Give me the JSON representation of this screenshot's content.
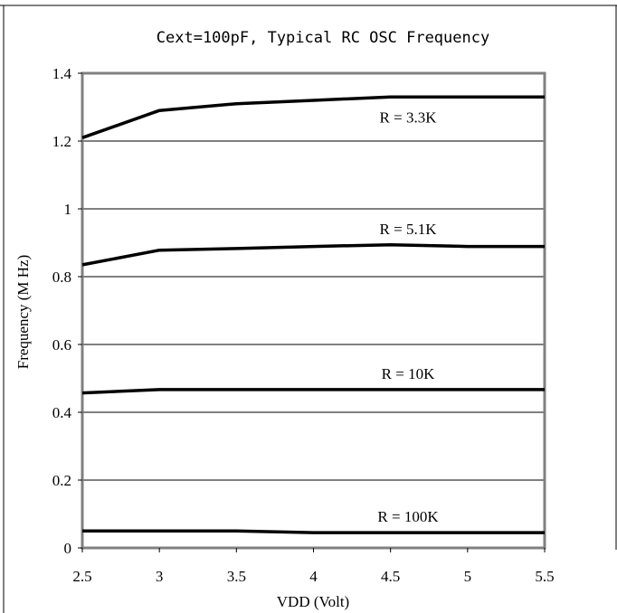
{
  "chart_data": {
    "type": "line",
    "title": "Cext=100pF, Typical RC OSC Frequency",
    "xlabel": "VDD (Volt)",
    "ylabel": "Frequency (M Hz)",
    "xlim": [
      2.5,
      5.5
    ],
    "ylim": [
      0,
      1.4
    ],
    "x_ticks": [
      "2.5",
      "3",
      "3.5",
      "4",
      "4.5",
      "5",
      "5.5"
    ],
    "y_ticks": [
      "0",
      "0.2",
      "0.4",
      "0.6",
      "0.8",
      "1",
      "1.2",
      "1.4"
    ],
    "grid": true,
    "x": [
      2.5,
      3,
      3.5,
      4,
      4.5,
      5,
      5.5
    ],
    "series": [
      {
        "name": "R = 3.3K",
        "values": [
          1.21,
          1.29,
          1.31,
          1.32,
          1.33,
          1.33,
          1.33
        ]
      },
      {
        "name": "R = 5.1K",
        "values": [
          0.835,
          0.878,
          0.883,
          0.889,
          0.894,
          0.889,
          0.889
        ]
      },
      {
        "name": "R = 10K",
        "values": [
          0.457,
          0.467,
          0.467,
          0.467,
          0.467,
          0.467,
          0.467
        ]
      },
      {
        "name": "R = 100K",
        "values": [
          0.05,
          0.05,
          0.05,
          0.045,
          0.045,
          0.045,
          0.045
        ]
      }
    ]
  }
}
